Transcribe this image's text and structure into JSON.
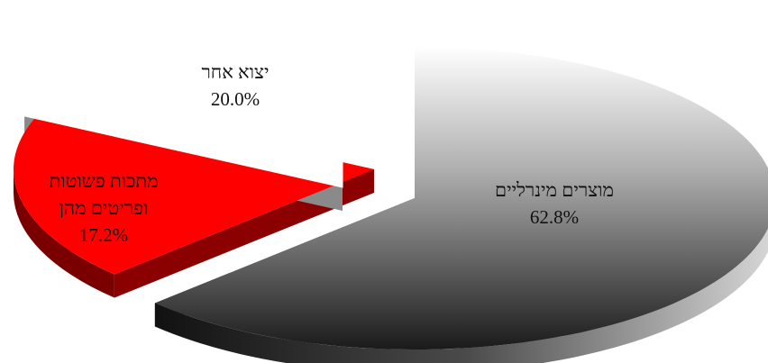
{
  "chart_data": {
    "type": "pie",
    "style": "3d",
    "title": "",
    "slices": [
      {
        "label": "מוצרים מינרליים",
        "label_lines": [
          "מוצרים מינרליים"
        ],
        "value": 62.8,
        "value_text": "62.8%",
        "color": "#3a3a3a",
        "exploded": true
      },
      {
        "label": "יצוא אחר",
        "label_lines": [
          "יצוא אחר"
        ],
        "value": 20.0,
        "value_text": "20.0%",
        "color": "#ff0000",
        "exploded": true
      },
      {
        "label": "מתכות פשוטות ופריטים מהן",
        "label_lines": [
          "מתכות פשוטות",
          "ופריטים מהן"
        ],
        "value": 17.2,
        "value_text": "17.2%",
        "color": "#ffffff",
        "exploded": true
      }
    ]
  }
}
